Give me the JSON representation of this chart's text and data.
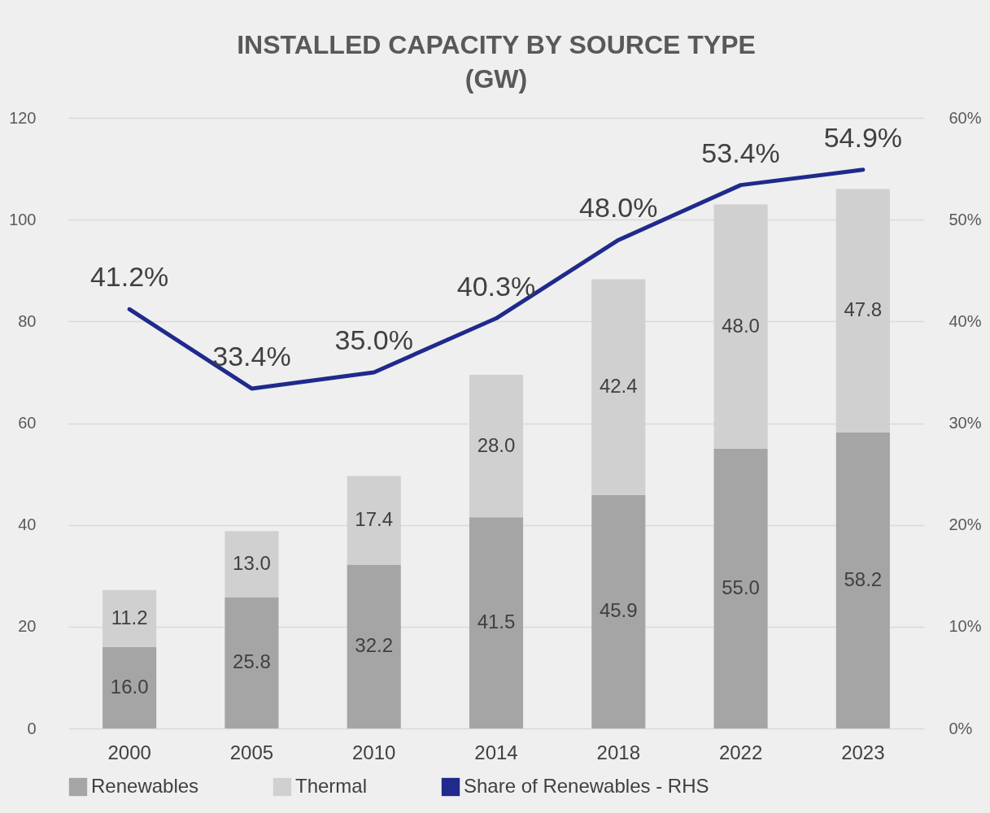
{
  "chart_data": {
    "type": "bar",
    "title": "INSTALLED CAPACITY BY SOURCE TYPE\n(GW)",
    "categories": [
      "2000",
      "2005",
      "2010",
      "2014",
      "2018",
      "2022",
      "2023"
    ],
    "stacked": true,
    "series": [
      {
        "name": "Renewables",
        "color": "#a5a5a5",
        "value_labels": [
          "16.0",
          "25.8",
          "32.2",
          "41.5",
          "45.9",
          "55.0",
          "58.2"
        ],
        "values": [
          16.0,
          25.8,
          32.2,
          41.5,
          45.9,
          55.0,
          58.2
        ]
      },
      {
        "name": "Thermal",
        "color": "#d0d0d0",
        "value_labels": [
          "11.2",
          "13.0",
          "17.4",
          "28.0",
          "42.4",
          "48.0",
          "47.8"
        ],
        "values": [
          11.2,
          13.0,
          17.4,
          28.0,
          42.4,
          48.0,
          47.8
        ]
      },
      {
        "name": "Share of Renewables - RHS",
        "type": "line",
        "axis": "y2",
        "color": "#1f2a8c",
        "value_labels": [
          "41.2%",
          "33.4%",
          "35.0%",
          "40.3%",
          "48.0%",
          "53.4%",
          "54.9%"
        ],
        "values": [
          41.2,
          33.4,
          35.0,
          40.3,
          48.0,
          53.4,
          54.9
        ]
      }
    ],
    "ylim": [
      0,
      120
    ],
    "yticks": [
      0,
      20,
      40,
      60,
      80,
      100,
      120
    ],
    "y2lim": [
      0,
      60
    ],
    "y2ticks": [
      {
        "value": 0,
        "label": "0%"
      },
      {
        "value": 10,
        "label": "10%"
      },
      {
        "value": 20,
        "label": "20%"
      },
      {
        "value": 30,
        "label": "30%"
      },
      {
        "value": 40,
        "label": "40%"
      },
      {
        "value": 50,
        "label": "50%"
      },
      {
        "value": 60,
        "label": "60%"
      }
    ],
    "grid": "y",
    "legend": "bottom",
    "data_labels": true,
    "marker": "none",
    "line_style": "solid"
  }
}
